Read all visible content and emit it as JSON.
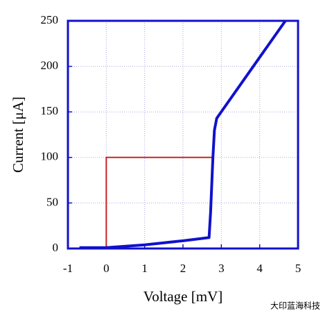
{
  "chart_data": {
    "type": "line",
    "xlabel": "Voltage [mV]",
    "ylabel": "Current [μA]",
    "series": [
      {
        "color": "#1111cc",
        "x": [
          -0.7,
          0,
          1,
          2,
          2.68,
          2.72,
          2.78,
          2.82,
          2.88,
          4.67
        ],
        "values": [
          1,
          1,
          4,
          8.5,
          12,
          40,
          100,
          130,
          143,
          250
        ]
      },
      {
        "color": "#cc2222",
        "x": [
          0,
          0,
          2.78
        ],
        "values": [
          0,
          100,
          100
        ]
      }
    ],
    "xlim": [
      -1,
      5
    ],
    "xticks": [
      -1,
      0,
      1,
      2,
      3,
      4,
      5
    ],
    "ylim": [
      0,
      250
    ],
    "yticks": [
      0,
      50,
      100,
      150,
      200,
      250
    ],
    "grid": true,
    "watermark": "大印蓝海科技"
  }
}
